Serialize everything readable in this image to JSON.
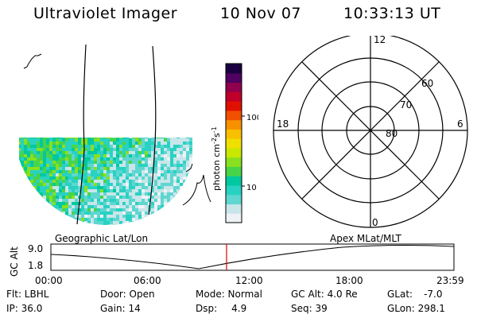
{
  "header": {
    "instrument": "Ultraviolet Imager",
    "date": "10 Nov 07",
    "time": "10:33:13 UT"
  },
  "colorbar": {
    "label": "photon cm",
    "label_sup1": "-2",
    "label_mid": "s",
    "label_sup2": "-1",
    "ticks": [
      "100",
      "10"
    ],
    "scale": "log"
  },
  "polar_plot": {
    "mlt_labels": [
      "12",
      "18",
      "6",
      "0"
    ],
    "lat_labels": [
      "60",
      "70",
      "80"
    ]
  },
  "map_labels": {
    "left": "Geographic Lat/Lon",
    "right": "Apex MLat/MLT"
  },
  "altitude_plot": {
    "ylabel": "GC Alt",
    "y_ticks": [
      "9.0",
      "1.8"
    ],
    "x_ticks": [
      "00:00",
      "06:00",
      "12:00",
      "18:00",
      "23:59"
    ],
    "marker_color": "#dd0000"
  },
  "info": {
    "flt": "Flt: LBHL",
    "ip": "IP: 36.0",
    "door": "Door: Open",
    "gain": "Gain: 14",
    "mode": "Mode: Normal",
    "dsp": "Dsp:",
    "dsp_value": "4.9",
    "gc_alt": "GC Alt: 4.0 Re",
    "seq": "Seq: 39",
    "glat": "GLat:",
    "glat_value": "-7.0",
    "glon": "GLon: 298.1"
  },
  "colors": {
    "palette": [
      "#eef2f6",
      "#c8e6ea",
      "#5fd6d0",
      "#28d2c2",
      "#00c8a0",
      "#48d448",
      "#88e020",
      "#c8e800",
      "#f0e000",
      "#f8c000",
      "#f89000",
      "#f05000",
      "#e01000",
      "#c0002a",
      "#90004c",
      "#500060",
      "#1a0040"
    ]
  }
}
